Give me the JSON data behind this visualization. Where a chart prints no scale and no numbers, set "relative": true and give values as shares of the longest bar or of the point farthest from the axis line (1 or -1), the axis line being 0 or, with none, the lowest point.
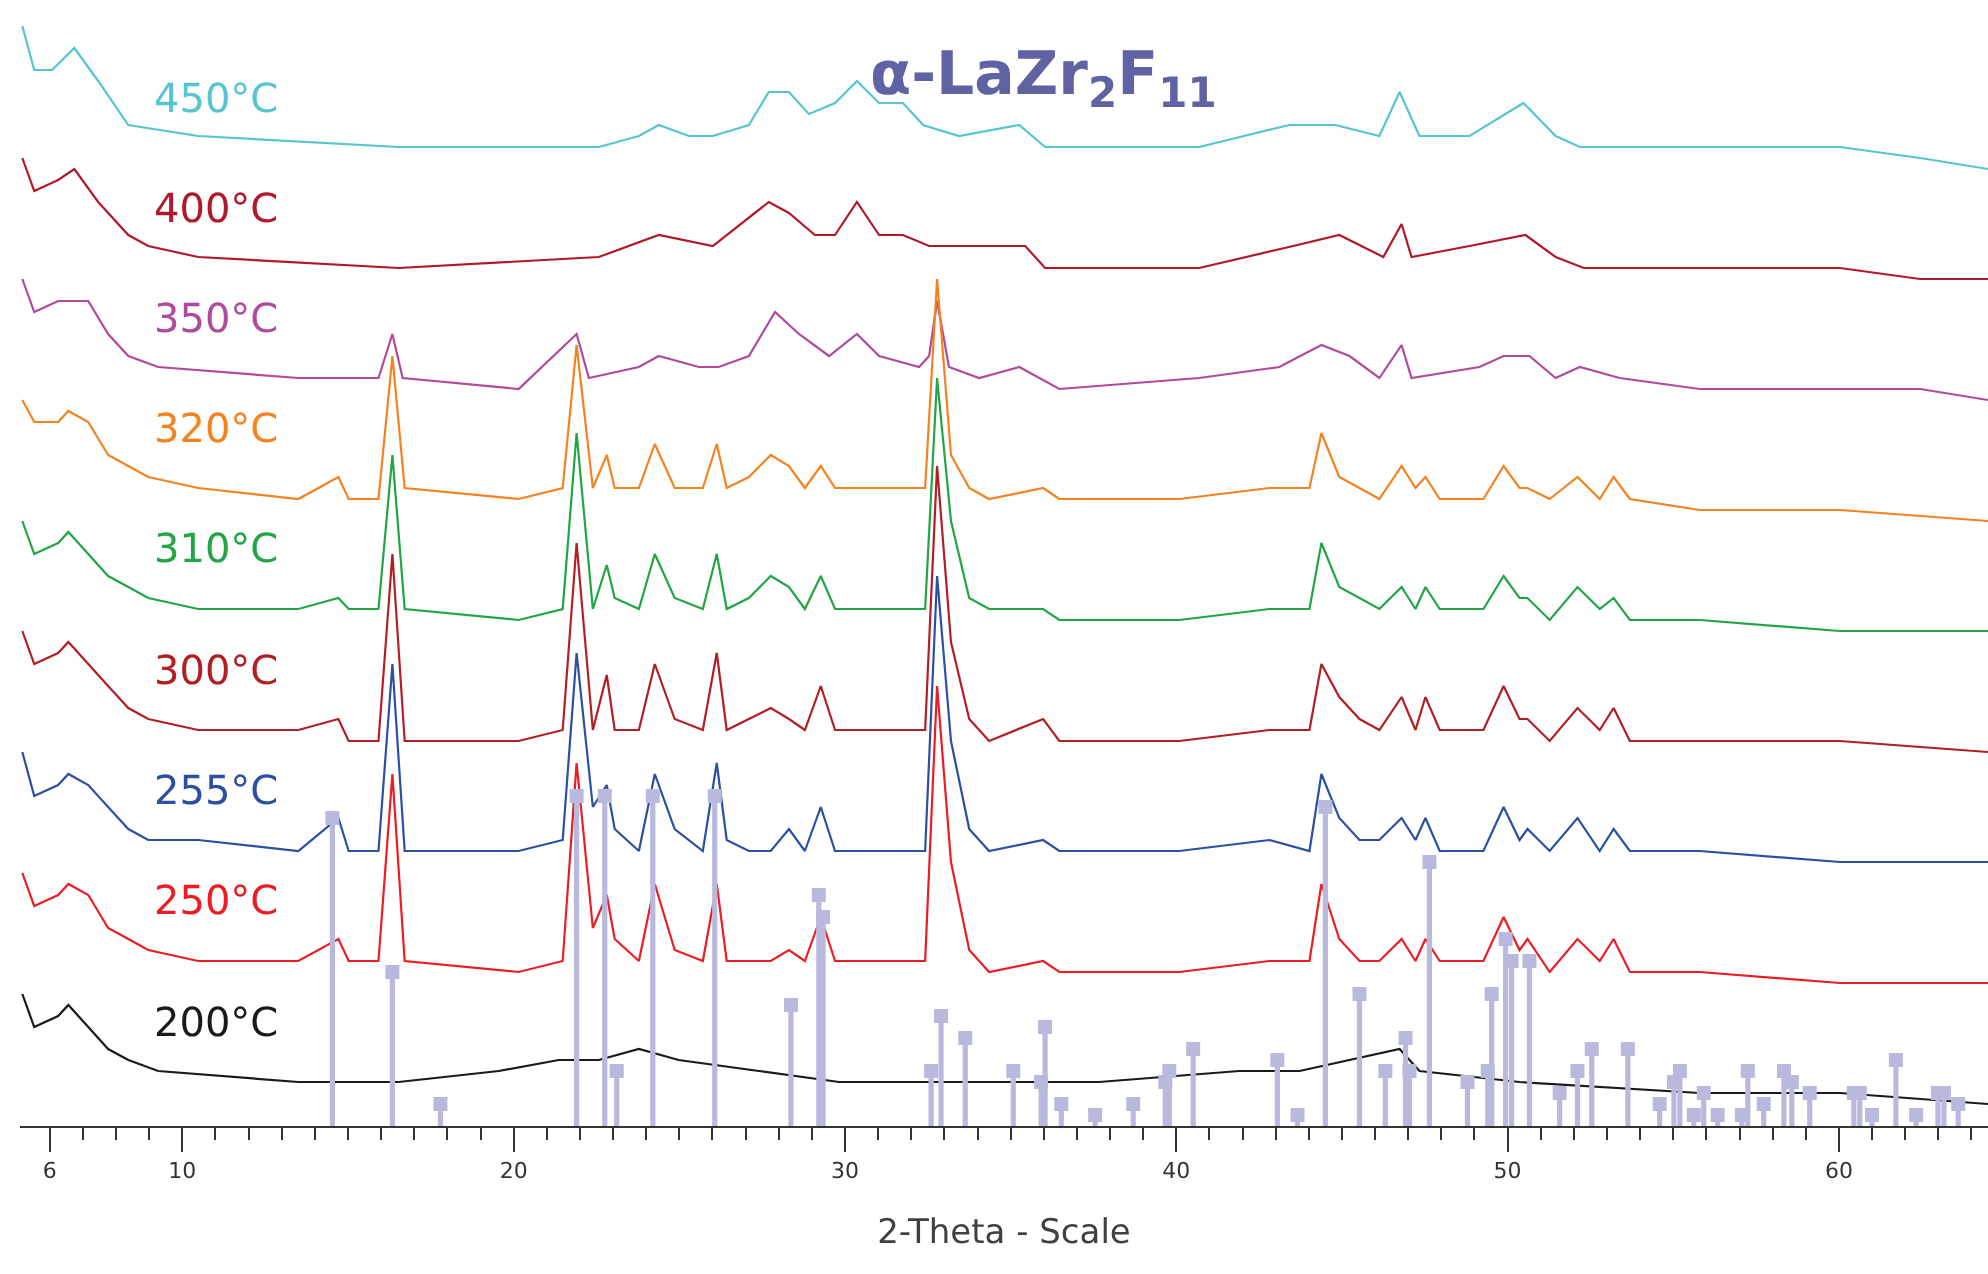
{
  "chart_data": {
    "type": "line",
    "title": "α-LaZr$_{2}$F$_{11}$",
    "xlabel": "2-Theta - Scale",
    "relative": true,
    "xlim": [
      5.1,
      64.5
    ],
    "xticks": [
      6,
      {
        "value": 7,
        "label": null
      },
      {
        "value": 8,
        "label": null
      },
      {
        "value": 9,
        "label": null
      },
      10,
      {
        "value": 11,
        "label": null
      },
      {
        "value": 12,
        "label": null
      },
      {
        "value": 13,
        "label": null
      },
      {
        "value": 14,
        "label": null
      },
      {
        "value": 15,
        "label": null
      },
      {
        "value": 16,
        "label": null
      },
      {
        "value": 17,
        "label": null
      },
      {
        "value": 18,
        "label": null
      },
      {
        "value": 19,
        "label": null
      },
      20,
      {
        "value": 21,
        "label": null
      },
      {
        "value": 22,
        "label": null
      },
      {
        "value": 23,
        "label": null
      },
      {
        "value": 24,
        "label": null
      },
      {
        "value": 25,
        "label": null
      },
      {
        "value": 26,
        "label": null
      },
      {
        "value": 27,
        "label": null
      },
      {
        "value": 28,
        "label": null
      },
      {
        "value": 29,
        "label": null
      },
      30,
      {
        "value": 31,
        "label": null
      },
      {
        "value": 32,
        "label": null
      },
      {
        "value": 33,
        "label": null
      },
      {
        "value": 34,
        "label": null
      },
      {
        "value": 35,
        "label": null
      },
      {
        "value": 36,
        "label": null
      },
      {
        "value": 37,
        "label": null
      },
      {
        "value": 38,
        "label": null
      },
      {
        "value": 39,
        "label": null
      },
      40,
      {
        "value": 41,
        "label": null
      },
      {
        "value": 42,
        "label": null
      },
      {
        "value": 43,
        "label": null
      },
      {
        "value": 44,
        "label": null
      },
      {
        "value": 45,
        "label": null
      },
      {
        "value": 46,
        "label": null
      },
      {
        "value": 47,
        "label": null
      },
      {
        "value": 48,
        "label": null
      },
      {
        "value": 49,
        "label": null
      },
      50,
      {
        "value": 51,
        "label": null
      },
      {
        "value": 52,
        "label": null
      },
      {
        "value": 53,
        "label": null
      },
      {
        "value": 54,
        "label": null
      },
      {
        "value": 55,
        "label": null
      },
      {
        "value": 56,
        "label": null
      },
      {
        "value": 57,
        "label": null
      },
      {
        "value": 58,
        "label": null
      },
      {
        "value": 59,
        "label": null
      },
      60,
      {
        "value": 61,
        "label": null
      },
      {
        "value": 62,
        "label": null
      },
      {
        "value": 63,
        "label": null
      },
      {
        "value": 64,
        "label": null
      }
    ],
    "x": [
      5.17,
      5.53,
      6.25,
      6.56,
      7.16,
      7.76,
      8.37,
      8.97,
      10.48,
      13.5,
      14.71,
      15.02,
      15.92,
      16.34,
      16.71,
      20.15,
      21.48,
      21.9,
      22.39,
      22.81,
      23.05,
      23.78,
      24.26,
      24.86,
      25.71,
      26.13,
      26.43,
      27.1,
      27.76,
      28.31,
      28.79,
      29.27,
      29.7,
      31.63,
      32.42,
      32.78,
      33.2,
      33.75,
      34.35,
      35.98,
      36.47,
      40.09,
      42.81,
      44.02,
      44.38,
      44.92,
      45.53,
      46.13,
      46.8,
      47.22,
      47.52,
      47.95,
      49.27,
      49.88,
      50.36,
      50.6,
      51.27,
      52.11,
      52.78,
      53.2,
      53.69,
      55.8,
      60.03,
      64.5
    ],
    "series": [
      {
        "name": "450°C",
        "color": "#56c5d0",
        "x": [
          5.17,
          5.53,
          6.07,
          6.74,
          7.46,
          8.37,
          10.48,
          16.53,
          22.57,
          23.78,
          24.38,
          25.29,
          26.01,
          27.1,
          27.7,
          28.31,
          28.91,
          29.7,
          30.36,
          31.03,
          31.75,
          32.36,
          33.44,
          35.26,
          36.04,
          40.69,
          43.41,
          44.8,
          46.13,
          46.74,
          47.34,
          48.85,
          50.48,
          51.45,
          52.18,
          55.8,
          60.03,
          62.45,
          64.5
        ],
        "values": [
          1.0,
          0.96,
          0.96,
          0.98,
          0.95,
          0.91,
          0.9,
          0.89,
          0.89,
          0.9,
          0.91,
          0.9,
          0.9,
          0.91,
          0.94,
          0.94,
          0.92,
          0.93,
          0.95,
          0.93,
          0.93,
          0.91,
          0.9,
          0.91,
          0.89,
          0.89,
          0.91,
          0.91,
          0.9,
          0.94,
          0.9,
          0.9,
          0.93,
          0.9,
          0.89,
          0.89,
          0.89,
          0.88,
          0.87
        ]
      },
      {
        "name": "400°C",
        "color": "#b2182b",
        "x": [
          5.17,
          5.53,
          6.25,
          6.74,
          7.46,
          8.37,
          8.97,
          10.48,
          16.53,
          22.57,
          24.38,
          26.01,
          27.7,
          28.31,
          29.09,
          29.7,
          30.36,
          31.03,
          31.75,
          32.54,
          34.05,
          35.44,
          36.04,
          40.69,
          43.53,
          44.92,
          46.25,
          46.8,
          47.1,
          48.85,
          50.54,
          51.45,
          52.3,
          55.8,
          60.03,
          62.45,
          64.5
        ],
        "values": [
          0.88,
          0.85,
          0.86,
          0.87,
          0.84,
          0.81,
          0.8,
          0.79,
          0.78,
          0.79,
          0.81,
          0.8,
          0.84,
          0.83,
          0.81,
          0.81,
          0.84,
          0.81,
          0.81,
          0.8,
          0.8,
          0.8,
          0.78,
          0.78,
          0.8,
          0.81,
          0.79,
          0.82,
          0.79,
          0.8,
          0.81,
          0.79,
          0.78,
          0.78,
          0.78,
          0.77,
          0.77
        ]
      },
      {
        "name": "350°C",
        "color": "#b04a9c",
        "x": [
          5.17,
          5.53,
          6.25,
          6.56,
          7.16,
          7.76,
          8.37,
          9.27,
          13.5,
          15.92,
          16.34,
          16.65,
          20.15,
          21.9,
          22.27,
          23.78,
          24.38,
          25.59,
          26.19,
          27.1,
          27.89,
          28.61,
          29.52,
          30.36,
          31.03,
          32.24,
          32.54,
          32.78,
          33.14,
          34.05,
          35.26,
          36.47,
          40.69,
          43.11,
          44.38,
          45.23,
          46.13,
          46.8,
          47.1,
          49.15,
          49.88,
          50.66,
          51.45,
          52.18,
          53.38,
          55.8,
          60.03,
          62.45,
          64.5
        ],
        "values": [
          0.77,
          0.74,
          0.75,
          0.75,
          0.75,
          0.72,
          0.7,
          0.69,
          0.68,
          0.68,
          0.72,
          0.68,
          0.67,
          0.72,
          0.68,
          0.69,
          0.7,
          0.69,
          0.69,
          0.7,
          0.74,
          0.72,
          0.7,
          0.72,
          0.7,
          0.69,
          0.7,
          0.75,
          0.69,
          0.68,
          0.69,
          0.67,
          0.68,
          0.69,
          0.71,
          0.7,
          0.68,
          0.71,
          0.68,
          0.69,
          0.7,
          0.7,
          0.68,
          0.69,
          0.68,
          0.67,
          0.67,
          0.67,
          0.66
        ]
      },
      {
        "name": "320°C",
        "color": "#f5821f",
        "values": [
          0.66,
          0.64,
          0.64,
          0.65,
          0.64,
          0.61,
          0.6,
          0.59,
          0.58,
          0.57,
          0.59,
          0.57,
          0.57,
          0.7,
          0.58,
          0.57,
          0.58,
          0.71,
          0.58,
          0.61,
          0.58,
          0.58,
          0.62,
          0.58,
          0.58,
          0.62,
          0.58,
          0.59,
          0.61,
          0.6,
          0.58,
          0.6,
          0.58,
          0.58,
          0.58,
          0.77,
          0.61,
          0.58,
          0.57,
          0.58,
          0.57,
          0.57,
          0.58,
          0.58,
          0.63,
          0.59,
          0.58,
          0.57,
          0.6,
          0.58,
          0.59,
          0.57,
          0.57,
          0.6,
          0.58,
          0.58,
          0.57,
          0.59,
          0.57,
          0.59,
          0.57,
          0.56,
          0.56,
          0.55
        ]
      },
      {
        "name": "310°C",
        "color": "#21a545",
        "values": [
          0.55,
          0.52,
          0.53,
          0.54,
          0.52,
          0.5,
          0.49,
          0.48,
          0.47,
          0.47,
          0.48,
          0.47,
          0.47,
          0.61,
          0.47,
          0.46,
          0.47,
          0.63,
          0.47,
          0.51,
          0.48,
          0.47,
          0.52,
          0.48,
          0.47,
          0.52,
          0.47,
          0.48,
          0.5,
          0.49,
          0.47,
          0.5,
          0.47,
          0.47,
          0.47,
          0.68,
          0.55,
          0.48,
          0.47,
          0.47,
          0.46,
          0.46,
          0.47,
          0.47,
          0.53,
          0.49,
          0.48,
          0.47,
          0.49,
          0.47,
          0.49,
          0.47,
          0.47,
          0.5,
          0.48,
          0.48,
          0.46,
          0.49,
          0.47,
          0.48,
          0.46,
          0.46,
          0.45,
          0.45
        ]
      },
      {
        "name": "300°C",
        "color": "#b11f24",
        "values": [
          0.45,
          0.42,
          0.43,
          0.44,
          0.42,
          0.4,
          0.38,
          0.37,
          0.36,
          0.36,
          0.37,
          0.35,
          0.35,
          0.52,
          0.35,
          0.35,
          0.36,
          0.53,
          0.36,
          0.41,
          0.36,
          0.36,
          0.42,
          0.37,
          0.36,
          0.43,
          0.36,
          0.37,
          0.38,
          0.37,
          0.36,
          0.4,
          0.36,
          0.36,
          0.36,
          0.6,
          0.44,
          0.37,
          0.35,
          0.37,
          0.35,
          0.35,
          0.36,
          0.36,
          0.42,
          0.39,
          0.37,
          0.36,
          0.39,
          0.36,
          0.39,
          0.36,
          0.36,
          0.4,
          0.37,
          0.37,
          0.35,
          0.38,
          0.36,
          0.38,
          0.35,
          0.35,
          0.35,
          0.34
        ]
      },
      {
        "name": "255°C",
        "color": "#2b4fa3",
        "values": [
          0.34,
          0.3,
          0.31,
          0.32,
          0.31,
          0.29,
          0.27,
          0.26,
          0.26,
          0.25,
          0.28,
          0.25,
          0.25,
          0.42,
          0.25,
          0.25,
          0.26,
          0.43,
          0.29,
          0.31,
          0.27,
          0.25,
          0.32,
          0.27,
          0.25,
          0.33,
          0.26,
          0.25,
          0.25,
          0.27,
          0.25,
          0.29,
          0.25,
          0.25,
          0.25,
          0.5,
          0.35,
          0.27,
          0.25,
          0.26,
          0.25,
          0.25,
          0.26,
          0.25,
          0.32,
          0.28,
          0.26,
          0.26,
          0.28,
          0.26,
          0.28,
          0.25,
          0.25,
          0.29,
          0.26,
          0.27,
          0.25,
          0.28,
          0.25,
          0.27,
          0.25,
          0.25,
          0.24,
          0.24
        ]
      },
      {
        "name": "250°C",
        "color": "#ec1c24",
        "values": [
          0.23,
          0.2,
          0.21,
          0.22,
          0.21,
          0.18,
          0.17,
          0.16,
          0.15,
          0.15,
          0.17,
          0.15,
          0.15,
          0.32,
          0.15,
          0.14,
          0.15,
          0.33,
          0.18,
          0.21,
          0.17,
          0.15,
          0.22,
          0.16,
          0.15,
          0.22,
          0.15,
          0.15,
          0.15,
          0.16,
          0.15,
          0.19,
          0.15,
          0.15,
          0.15,
          0.4,
          0.24,
          0.16,
          0.14,
          0.15,
          0.14,
          0.14,
          0.15,
          0.15,
          0.22,
          0.17,
          0.15,
          0.15,
          0.17,
          0.15,
          0.17,
          0.15,
          0.15,
          0.19,
          0.16,
          0.17,
          0.14,
          0.17,
          0.15,
          0.17,
          0.14,
          0.14,
          0.13,
          0.13
        ]
      },
      {
        "name": "200°C",
        "color": "#1a1a1a",
        "x": [
          5.17,
          5.53,
          6.25,
          6.56,
          7.16,
          7.76,
          8.37,
          9.27,
          13.5,
          16.53,
          19.55,
          21.36,
          22.57,
          23.78,
          24.98,
          27.4,
          29.82,
          33.44,
          37.67,
          41.9,
          43.72,
          46.74,
          47.34,
          50.36,
          55.8,
          60.03,
          64.5
        ],
        "values": [
          0.12,
          0.09,
          0.1,
          0.11,
          0.09,
          0.07,
          0.06,
          0.05,
          0.04,
          0.04,
          0.05,
          0.06,
          0.06,
          0.07,
          0.06,
          0.05,
          0.04,
          0.04,
          0.04,
          0.05,
          0.05,
          0.07,
          0.05,
          0.04,
          0.03,
          0.03,
          0.02
        ]
      },
      {
        "type": "lollipop",
        "color": "#b9b9de",
        "marker": "square",
        "x": [
          14.53,
          16.34,
          17.79,
          21.9,
          22.75,
          23.11,
          24.2,
          26.07,
          28.37,
          29.21,
          29.34,
          32.6,
          32.9,
          33.63,
          35.08,
          35.92,
          36.04,
          36.53,
          37.55,
          38.7,
          39.67,
          39.79,
          40.51,
          43.05,
          43.66,
          44.5,
          45.53,
          46.31,
          46.92,
          47.04,
          47.64,
          48.79,
          49.4,
          49.52,
          49.94,
          50.12,
          50.66,
          51.57,
          52.11,
          52.54,
          53.63,
          54.59,
          55.02,
          55.2,
          55.62,
          55.92,
          56.34,
          57.07,
          57.25,
          57.73,
          58.34,
          58.58,
          59.12,
          60.45,
          60.63,
          61.0,
          61.72,
          62.33,
          62.99,
          63.17,
          63.6
        ],
        "values": [
          0.28,
          0.14,
          0.02,
          0.3,
          0.3,
          0.05,
          0.3,
          0.3,
          0.11,
          0.21,
          0.19,
          0.05,
          0.1,
          0.08,
          0.05,
          0.04,
          0.09,
          0.02,
          0.01,
          0.02,
          0.04,
          0.05,
          0.07,
          0.06,
          0.01,
          0.29,
          0.12,
          0.05,
          0.08,
          0.05,
          0.24,
          0.04,
          0.05,
          0.12,
          0.17,
          0.15,
          0.15,
          0.03,
          0.05,
          0.07,
          0.07,
          0.02,
          0.04,
          0.05,
          0.01,
          0.03,
          0.01,
          0.01,
          0.05,
          0.02,
          0.05,
          0.04,
          0.03,
          0.03,
          0.03,
          0.01,
          0.06,
          0.01,
          0.03,
          0.03,
          0.02
        ]
      }
    ]
  }
}
